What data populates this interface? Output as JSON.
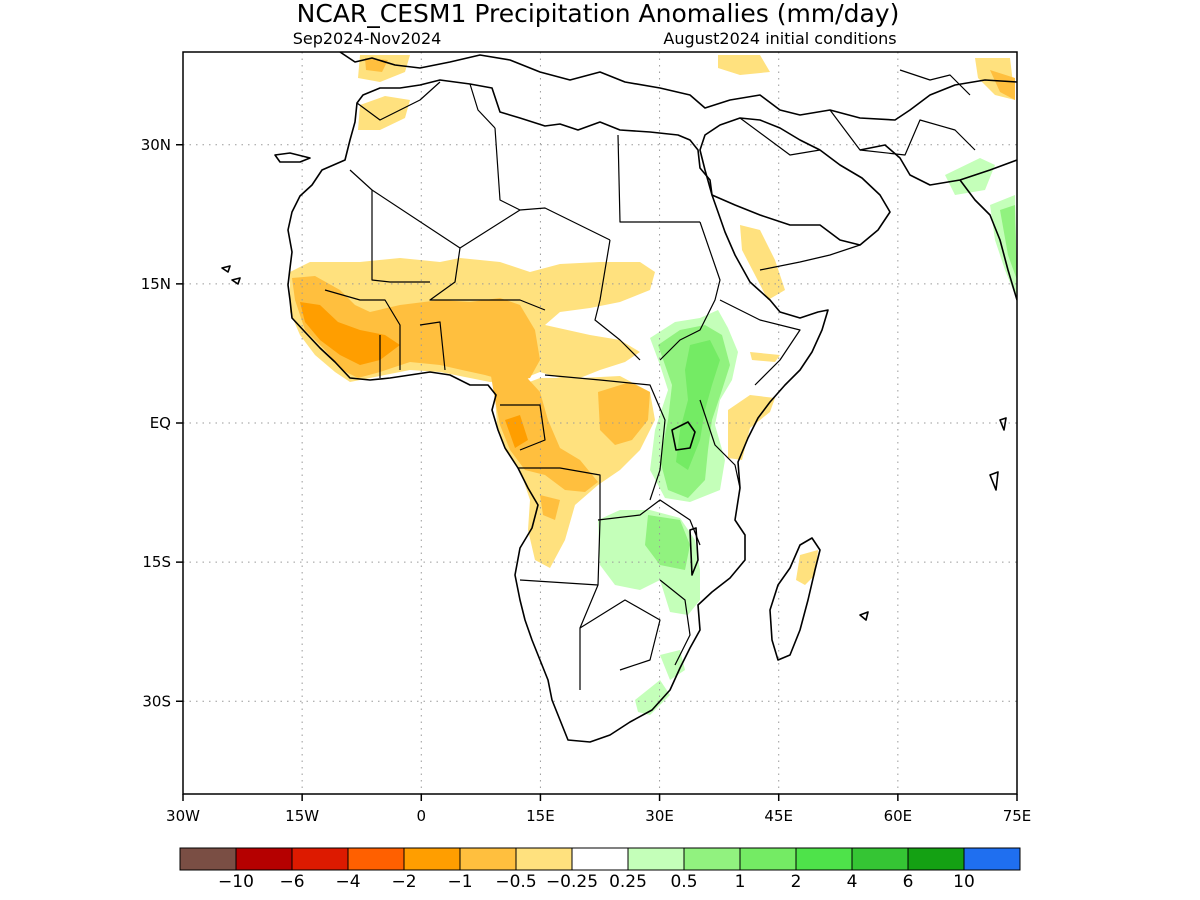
{
  "title": "NCAR_CESM1 Precipitation Anomalies (mm/day)",
  "subtitle_left": "Sep2024-Nov2024",
  "subtitle_right": "August2024 initial conditions",
  "map": {
    "lon_range": [
      -30,
      75
    ],
    "lat_range": [
      -40,
      40
    ],
    "lon_ticks": [
      {
        "value": -30,
        "label": "30W"
      },
      {
        "value": -15,
        "label": "15W"
      },
      {
        "value": 0,
        "label": "0"
      },
      {
        "value": 15,
        "label": "15E"
      },
      {
        "value": 30,
        "label": "30E"
      },
      {
        "value": 45,
        "label": "45E"
      },
      {
        "value": 60,
        "label": "60E"
      },
      {
        "value": 75,
        "label": "75E"
      }
    ],
    "lat_ticks": [
      {
        "value": 30,
        "label": "30N"
      },
      {
        "value": 15,
        "label": "15N"
      },
      {
        "value": 0,
        "label": "EQ"
      },
      {
        "value": -15,
        "label": "15S"
      },
      {
        "value": -30,
        "label": "30S"
      }
    ],
    "grid": "dotted"
  },
  "colorbar": {
    "colors": [
      "#7a4e44",
      "#b50000",
      "#dd1a00",
      "#ff6000",
      "#ff9e00",
      "#ffbf3e",
      "#ffe17e",
      "#ffffff",
      "#c4ffb9",
      "#91f27f",
      "#74eb64",
      "#4ee34a",
      "#35c534",
      "#14a113",
      "#1f6ff0"
    ],
    "labels": [
      "-10",
      "-6",
      "-4",
      "-2",
      "-1",
      "-0.5",
      "-0.25",
      "0.25",
      "0.5",
      "1",
      "2",
      "4",
      "6",
      "10"
    ]
  },
  "colors": {
    "dry_light": "#ffe17e",
    "dry_moderate": "#ffbf3e",
    "dry_strong": "#ff9e00",
    "wet_light": "#c4ffb9",
    "wet_moderate": "#91f27f",
    "wet_strong": "#74eb64"
  }
}
